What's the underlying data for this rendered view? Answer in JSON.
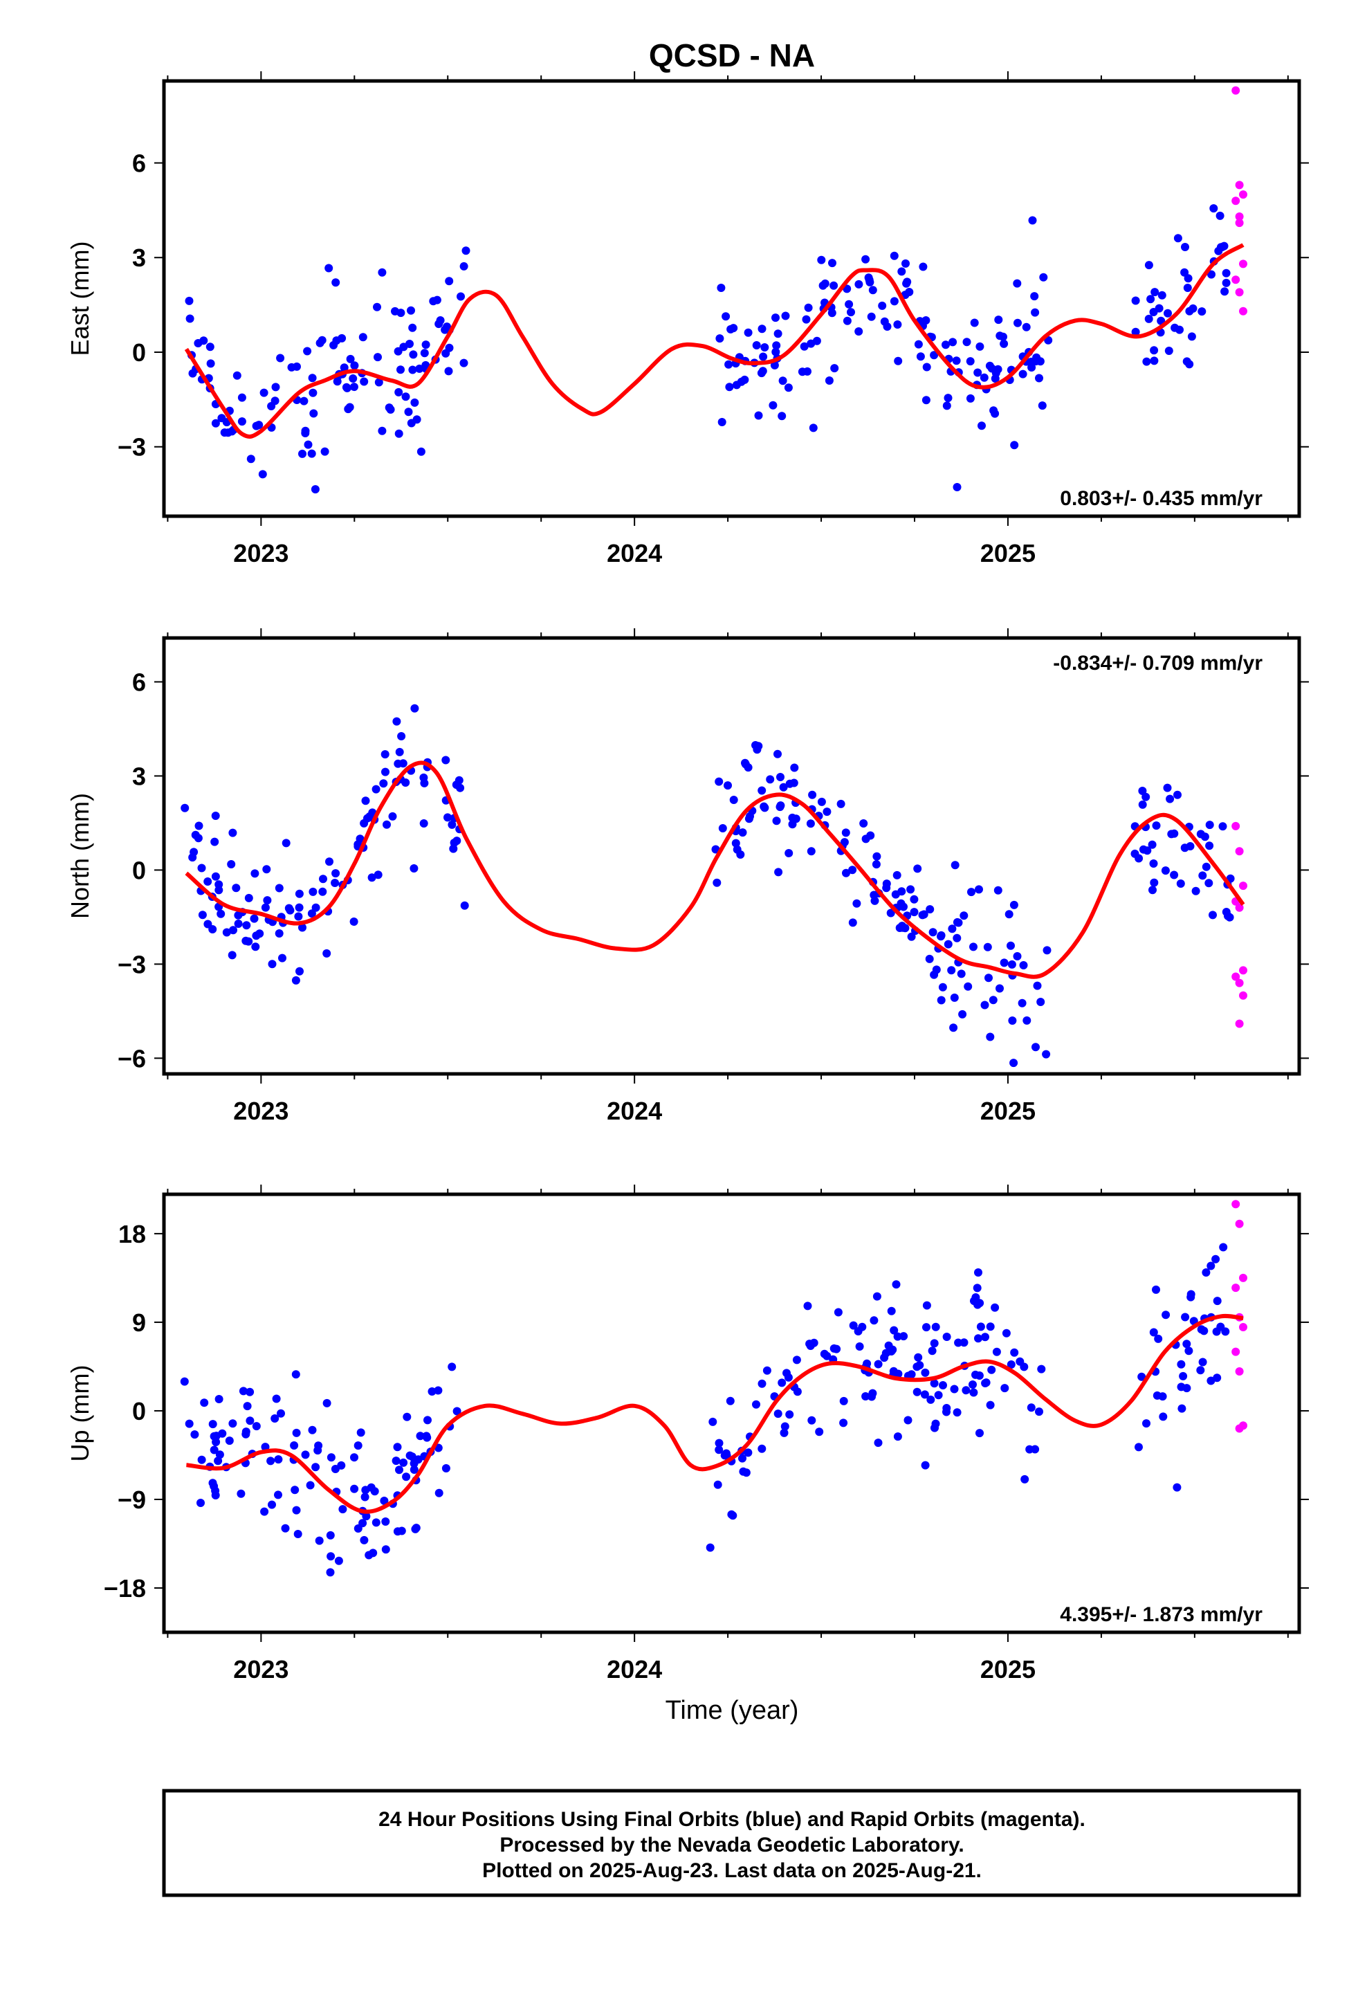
{
  "colors": {
    "final_points": "#0000ff",
    "rapid_points": "#ff00ff",
    "model_curve": "#ff0000",
    "frame": "#000000",
    "background": "#ffffff"
  },
  "chart_data": {
    "title": "QCSD - NA",
    "type": "scatter",
    "xlabel": "Time (year)",
    "xlim": [
      2022.74,
      2025.78
    ],
    "xticks": [
      2023,
      2024,
      2025
    ],
    "panels": [
      {
        "id": "east",
        "ylabel": "East (mm)",
        "ylim": [
          -5.2,
          8.6
        ],
        "yticks": [
          -3,
          0,
          3,
          6
        ],
        "yticklabels": [
          "−3",
          "0",
          "3",
          "6"
        ],
        "rate_text": "0.803+/- 0.435 mm/yr",
        "rate_position": "bottom-right",
        "data_segments": [
          [
            2022.79,
            2023.55
          ],
          [
            2024.2,
            2025.11
          ],
          [
            2025.34,
            2025.6
          ]
        ],
        "model_curve": {
          "x": [
            2022.8,
            2022.9,
            2022.95,
            2023.0,
            2023.1,
            2023.17,
            2023.25,
            2023.35,
            2023.42,
            2023.5,
            2023.56,
            2023.63,
            2023.7,
            2023.78,
            2023.86,
            2023.91,
            2024.0,
            2024.1,
            2024.18,
            2024.26,
            2024.32,
            2024.4,
            2024.5,
            2024.58,
            2024.62,
            2024.68,
            2024.75,
            2024.85,
            2024.92,
            2025.0,
            2025.1,
            2025.18,
            2025.25,
            2025.35,
            2025.45,
            2025.55,
            2025.63
          ],
          "y": [
            0.1,
            -1.8,
            -2.6,
            -2.5,
            -1.3,
            -0.9,
            -0.6,
            -0.9,
            -1.0,
            0.5,
            1.7,
            1.8,
            0.5,
            -1.0,
            -1.8,
            -1.9,
            -1.0,
            0.1,
            0.2,
            -0.2,
            -0.35,
            -0.1,
            1.2,
            2.4,
            2.6,
            2.4,
            1.0,
            -0.5,
            -1.1,
            -0.8,
            0.5,
            1.0,
            0.9,
            0.5,
            1.2,
            2.8,
            3.4
          ]
        },
        "final_points": {
          "center": 0.0,
          "scatter": 1.2,
          "count": 300
        },
        "rapid_points": {
          "x": [
            2025.61,
            2025.62,
            2025.63,
            2025.61,
            2025.62,
            2025.63,
            2025.61,
            2025.62,
            2025.63,
            2025.62
          ],
          "y": [
            8.3,
            5.3,
            5.0,
            4.8,
            4.3,
            2.8,
            2.3,
            1.9,
            1.3,
            4.1
          ]
        }
      },
      {
        "id": "north",
        "ylabel": "North (mm)",
        "ylim": [
          -6.5,
          7.4
        ],
        "yticks": [
          -6,
          -3,
          0,
          3,
          6
        ],
        "yticklabels": [
          "−6",
          "−3",
          "0",
          "3",
          "6"
        ],
        "rate_text": "-0.834+/- 0.709 mm/yr",
        "rate_position": "top-right",
        "data_segments": [
          [
            2022.79,
            2023.55
          ],
          [
            2024.2,
            2025.11
          ],
          [
            2025.34,
            2025.6
          ]
        ],
        "model_curve": {
          "x": [
            2022.8,
            2022.9,
            2023.0,
            2023.1,
            2023.18,
            2023.25,
            2023.32,
            2023.4,
            2023.47,
            2023.55,
            2023.65,
            2023.75,
            2023.85,
            2023.95,
            2024.05,
            2024.15,
            2024.22,
            2024.3,
            2024.38,
            2024.45,
            2024.52,
            2024.6,
            2024.7,
            2024.8,
            2024.88,
            2024.95,
            2025.02,
            2025.1,
            2025.2,
            2025.3,
            2025.38,
            2025.45,
            2025.55,
            2025.63
          ],
          "y": [
            -0.1,
            -1.1,
            -1.4,
            -1.7,
            -1.2,
            0.2,
            2.0,
            3.3,
            3.1,
            1.0,
            -1.0,
            -1.9,
            -2.2,
            -2.5,
            -2.4,
            -1.2,
            0.4,
            1.9,
            2.4,
            2.1,
            1.2,
            0.1,
            -1.3,
            -2.3,
            -2.9,
            -3.1,
            -3.3,
            -3.3,
            -2.0,
            0.5,
            1.6,
            1.6,
            0.2,
            -1.1
          ]
        },
        "final_points": {
          "center": 0.0,
          "scatter": 1.1,
          "count": 300
        },
        "rapid_points": {
          "x": [
            2025.61,
            2025.62,
            2025.63,
            2025.61,
            2025.62,
            2025.63,
            2025.61,
            2025.62,
            2025.63,
            2025.62
          ],
          "y": [
            1.4,
            0.6,
            -0.5,
            -1.0,
            -1.2,
            -3.2,
            -3.4,
            -3.6,
            -4.0,
            -4.9
          ]
        }
      },
      {
        "id": "up",
        "ylabel": "Up (mm)",
        "ylim": [
          -22.5,
          22.0
        ],
        "yticks": [
          -18,
          -9,
          0,
          9,
          18
        ],
        "yticklabels": [
          "−18",
          "−9",
          "0",
          "9",
          "18"
        ],
        "rate_text": "4.395+/- 1.873 mm/yr",
        "rate_position": "bottom-right",
        "data_segments": [
          [
            2022.79,
            2023.55
          ],
          [
            2024.2,
            2025.11
          ],
          [
            2025.34,
            2025.6
          ]
        ],
        "model_curve": {
          "x": [
            2022.8,
            2022.9,
            2023.0,
            2023.08,
            2023.18,
            2023.27,
            2023.35,
            2023.42,
            2023.5,
            2023.6,
            2023.7,
            2023.8,
            2023.9,
            2024.0,
            2024.08,
            2024.15,
            2024.22,
            2024.3,
            2024.38,
            2024.45,
            2024.52,
            2024.6,
            2024.7,
            2024.8,
            2024.88,
            2024.95,
            2025.02,
            2025.1,
            2025.18,
            2025.25,
            2025.33,
            2025.42,
            2025.5,
            2025.57,
            2025.63
          ],
          "y": [
            -5.5,
            -5.8,
            -4.2,
            -4.5,
            -8.0,
            -10.2,
            -9.3,
            -6.5,
            -1.5,
            0.5,
            -0.3,
            -1.3,
            -0.7,
            0.5,
            -1.5,
            -5.5,
            -5.6,
            -3.5,
            1.0,
            3.6,
            4.8,
            4.5,
            3.3,
            3.3,
            4.5,
            5.0,
            3.8,
            1.2,
            -1.0,
            -1.4,
            1.0,
            6.0,
            8.6,
            9.6,
            9.4
          ]
        },
        "final_points": {
          "center": 0.0,
          "scatter": 4.2,
          "count": 300
        },
        "rapid_points": {
          "x": [
            2025.61,
            2025.62,
            2025.63,
            2025.61,
            2025.62,
            2025.63,
            2025.61,
            2025.62,
            2025.63,
            2025.62
          ],
          "y": [
            21.0,
            19.0,
            13.5,
            12.5,
            9.5,
            8.5,
            6.0,
            4.0,
            -1.5,
            -1.8
          ]
        }
      }
    ],
    "footer_lines": [
      "24 Hour Positions Using Final Orbits (blue) and Rapid Orbits (magenta).",
      "Processed by the Nevada Geodetic Laboratory.",
      "Plotted on 2025-Aug-23. Last data on 2025-Aug-21."
    ]
  }
}
